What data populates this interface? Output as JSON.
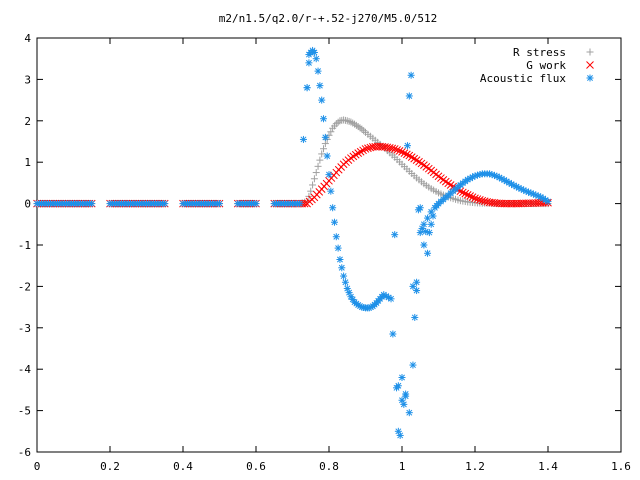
{
  "chart_data": {
    "type": "scatter",
    "title": "m2/n1.5/q2.0/r-+.52-j270/M5.0/512",
    "xlabel": "",
    "ylabel": "",
    "xlim": [
      0,
      1.6
    ],
    "ylim": [
      -6,
      4
    ],
    "x_ticks": [
      "0",
      "0.2",
      "0.4",
      "0.6",
      "0.8",
      "1",
      "1.2",
      "1.4",
      "1.6"
    ],
    "y_ticks": [
      "4",
      "3",
      "2",
      "1",
      "0",
      "-1",
      "-2",
      "-3",
      "-4",
      "-5",
      "-6"
    ],
    "grid": false,
    "legend_position": "top-right",
    "series": [
      {
        "name": "R stress",
        "marker": "+",
        "color": "#a0a0a0",
        "x": [
          0.0,
          0.05,
          0.1,
          0.15,
          0.2,
          0.25,
          0.3,
          0.35,
          0.4,
          0.45,
          0.5,
          0.55,
          0.6,
          0.65,
          0.7,
          0.72,
          0.74,
          0.75,
          0.76,
          0.77,
          0.78,
          0.79,
          0.8,
          0.81,
          0.82,
          0.83,
          0.84,
          0.85,
          0.86,
          0.87,
          0.88,
          0.89,
          0.9,
          0.92,
          0.94,
          0.96,
          0.98,
          1.0,
          1.02,
          1.04,
          1.06,
          1.08,
          1.1,
          1.12,
          1.14,
          1.16,
          1.18,
          1.2,
          1.22,
          1.24,
          1.26,
          1.28,
          1.3,
          1.32,
          1.34,
          1.36,
          1.38,
          1.4
        ],
        "y": [
          0,
          0,
          0,
          0,
          0,
          0,
          0,
          0,
          0,
          0,
          0,
          0,
          0,
          0,
          0,
          0,
          0.05,
          0.3,
          0.6,
          0.9,
          1.2,
          1.45,
          1.65,
          1.82,
          1.93,
          2.0,
          2.02,
          2.0,
          1.97,
          1.92,
          1.86,
          1.8,
          1.72,
          1.58,
          1.43,
          1.28,
          1.12,
          0.95,
          0.78,
          0.62,
          0.48,
          0.36,
          0.26,
          0.18,
          0.12,
          0.07,
          0.04,
          0.02,
          0.01,
          0.01,
          0.0,
          0.0,
          0.0,
          0.0,
          0.0,
          0.0,
          0.0,
          0.0
        ]
      },
      {
        "name": "G work",
        "marker": "x",
        "color": "#ff0000",
        "x": [
          0.0,
          0.05,
          0.1,
          0.15,
          0.2,
          0.25,
          0.3,
          0.35,
          0.4,
          0.45,
          0.5,
          0.55,
          0.6,
          0.65,
          0.7,
          0.72,
          0.74,
          0.76,
          0.78,
          0.8,
          0.82,
          0.84,
          0.86,
          0.88,
          0.9,
          0.92,
          0.94,
          0.96,
          0.98,
          1.0,
          1.02,
          1.04,
          1.06,
          1.08,
          1.1,
          1.12,
          1.14,
          1.16,
          1.18,
          1.2,
          1.22,
          1.24,
          1.26,
          1.28,
          1.3,
          1.32,
          1.34,
          1.36,
          1.38,
          1.4
        ],
        "y": [
          0,
          0,
          0,
          0,
          0,
          0,
          0,
          0,
          0,
          0,
          0,
          0,
          0,
          0,
          0,
          0,
          0.0,
          0.15,
          0.35,
          0.55,
          0.75,
          0.95,
          1.1,
          1.22,
          1.32,
          1.37,
          1.38,
          1.36,
          1.32,
          1.25,
          1.16,
          1.05,
          0.93,
          0.8,
          0.66,
          0.53,
          0.41,
          0.3,
          0.21,
          0.13,
          0.07,
          0.03,
          0.01,
          0.0,
          0.0,
          0.0,
          0.01,
          0.01,
          0.02,
          0.02
        ]
      },
      {
        "name": "Acoustic flux",
        "marker": "*",
        "color": "#1e90e8",
        "x": [
          0.0,
          0.05,
          0.1,
          0.15,
          0.2,
          0.25,
          0.3,
          0.35,
          0.4,
          0.45,
          0.5,
          0.55,
          0.6,
          0.65,
          0.7,
          0.72,
          0.74,
          0.745,
          0.75,
          0.755,
          0.76,
          0.765,
          0.77,
          0.78,
          0.79,
          0.8,
          0.81,
          0.82,
          0.83,
          0.84,
          0.85,
          0.86,
          0.87,
          0.88,
          0.89,
          0.9,
          0.91,
          0.92,
          0.93,
          0.94,
          0.95,
          1.05,
          1.06,
          1.07,
          1.08,
          1.09,
          1.1,
          1.12,
          1.14,
          1.16,
          1.18,
          1.2,
          1.22,
          1.24,
          1.26,
          1.28,
          1.3,
          1.32,
          1.34,
          1.36,
          1.38,
          1.4,
          0.73,
          0.74,
          0.745,
          0.97,
          0.98,
          0.985,
          0.99,
          0.995,
          1.0,
          1.005,
          1.01,
          1.015,
          1.02,
          1.025,
          1.03,
          1.035,
          1.04,
          1.045,
          1.05,
          1.055,
          0.975,
          0.99,
          1.0,
          1.01,
          1.02,
          1.03,
          1.04,
          1.06,
          1.07,
          1.08
        ],
        "y": [
          0,
          0,
          0,
          0,
          0,
          0,
          0,
          0,
          0,
          0,
          0,
          0,
          0,
          0,
          0,
          0,
          2.8,
          3.4,
          3.65,
          3.7,
          3.65,
          3.5,
          3.2,
          2.5,
          1.6,
          0.7,
          -0.1,
          -0.8,
          -1.35,
          -1.75,
          -2.05,
          -2.25,
          -2.38,
          -2.45,
          -2.5,
          -2.52,
          -2.52,
          -2.48,
          -2.4,
          -2.3,
          -2.2,
          -0.7,
          -0.5,
          -0.35,
          -0.2,
          -0.1,
          0.0,
          0.15,
          0.3,
          0.45,
          0.58,
          0.67,
          0.72,
          0.72,
          0.66,
          0.57,
          0.47,
          0.38,
          0.3,
          0.23,
          0.16,
          0.05,
          1.55,
          2.8,
          3.6,
          -2.3,
          -0.75,
          -4.45,
          -5.5,
          -5.6,
          -4.2,
          -4.85,
          -4.6,
          1.4,
          2.6,
          3.1,
          -2.0,
          -2.75,
          -1.9,
          -0.15,
          -0.1,
          -0.6,
          -3.15,
          -4.4,
          -4.75,
          -4.65,
          -5.05,
          -3.9,
          -2.1,
          -1.0,
          -1.2,
          -0.5
        ]
      }
    ]
  }
}
